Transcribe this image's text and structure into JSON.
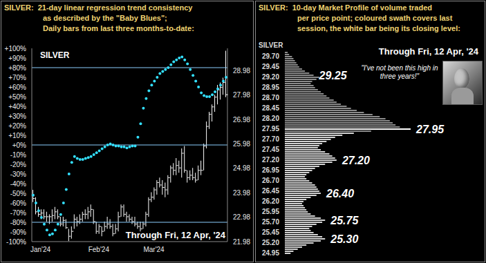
{
  "chart_data": [
    {
      "type": "combo",
      "title": [
        "SILVER:  21-day linear regression trend consistency",
        "as described by the \"Baby Blues\";",
        "Daily bars from last three months-to-date:"
      ],
      "label": "SILVER",
      "note": "Through Fri, 12 Apr, '24",
      "categories": [
        "Jan'24",
        null,
        null,
        null,
        null,
        null,
        null,
        null,
        null,
        null,
        null,
        null,
        null,
        null,
        null,
        null,
        null,
        null,
        null,
        null,
        null,
        "Feb'24",
        null,
        null,
        null,
        null,
        null,
        null,
        null,
        null,
        null,
        null,
        null,
        null,
        null,
        null,
        null,
        null,
        null,
        null,
        null,
        "Mar'24",
        null,
        null,
        null,
        null,
        null,
        null,
        null,
        null,
        null,
        null,
        null,
        null,
        null,
        null,
        null,
        null,
        null,
        null,
        null,
        null,
        null,
        null,
        null,
        null,
        null,
        null,
        null,
        null,
        null
      ],
      "ylim": [
        -100,
        100
      ],
      "yticks": [
        {
          "value": 100,
          "label": "+100%"
        },
        {
          "value": 90,
          "label": "+90%"
        },
        {
          "value": 80,
          "label": "+80%"
        },
        {
          "value": 70,
          "label": "+70%"
        },
        {
          "value": 60,
          "label": "+60%"
        },
        {
          "value": 50,
          "label": "+50%"
        },
        {
          "value": 40,
          "label": "+40%"
        },
        {
          "value": 30,
          "label": "+30%"
        },
        {
          "value": 20,
          "label": "+20%"
        },
        {
          "value": 10,
          "label": "+10%"
        },
        {
          "value": 0,
          "label": "+0%"
        },
        {
          "value": -10,
          "label": "-10%"
        },
        {
          "value": -20,
          "label": "-20%"
        },
        {
          "value": -30,
          "label": "-30%"
        },
        {
          "value": -40,
          "label": "-40%"
        },
        {
          "value": -50,
          "label": "-50%"
        },
        {
          "value": -60,
          "label": "-60%"
        },
        {
          "value": -70,
          "label": "-70%"
        },
        {
          "value": -80,
          "label": "-80%"
        },
        {
          "value": -90,
          "label": "-90%"
        },
        {
          "value": -100,
          "label": "-100%"
        }
      ],
      "y2lim": [
        21.98,
        29.9
      ],
      "y2ticks": [
        21.98,
        22.98,
        23.98,
        24.98,
        25.98,
        26.98,
        27.98,
        28.98
      ],
      "reference_lines": {
        "values": [
          80,
          0,
          -80
        ],
        "color": "#8ccfff"
      },
      "grid": false,
      "series": [
        {
          "type": "range_bar",
          "axis": "y2",
          "color": "#ffffff",
          "low": [
            23.6,
            23.1,
            23.0,
            22.9,
            22.9,
            22.8,
            22.7,
            22.8,
            22.9,
            22.9,
            22.6,
            22.6,
            22.5,
            22.0,
            22.1,
            22.5,
            22.6,
            22.7,
            22.8,
            22.9,
            22.9,
            23.0,
            22.7,
            22.3,
            22.3,
            22.2,
            22.4,
            22.5,
            22.5,
            22.2,
            22.3,
            22.4,
            23.0,
            23.0,
            22.8,
            22.8,
            22.7,
            22.6,
            22.5,
            22.4,
            22.5,
            22.6,
            23.0,
            23.6,
            23.7,
            23.9,
            24.2,
            23.9,
            23.8,
            23.9,
            24.4,
            24.7,
            24.7,
            24.8,
            24.6,
            24.8,
            24.4,
            24.5,
            24.5,
            24.4,
            24.5,
            24.7,
            24.9,
            25.8,
            26.6,
            26.9,
            27.3,
            27.6,
            27.8,
            28.0,
            27.9
          ],
          "high": [
            24.1,
            23.8,
            23.4,
            23.3,
            23.3,
            23.2,
            23.1,
            23.3,
            23.4,
            23.3,
            23.0,
            23.0,
            22.9,
            22.5,
            22.6,
            23.1,
            23.0,
            23.1,
            23.2,
            23.3,
            23.4,
            23.5,
            23.3,
            22.8,
            22.7,
            22.6,
            22.8,
            23.0,
            22.9,
            22.7,
            22.7,
            23.2,
            23.5,
            23.5,
            23.2,
            23.1,
            23.0,
            23.0,
            22.8,
            22.8,
            22.8,
            23.2,
            23.8,
            24.0,
            24.2,
            24.5,
            24.6,
            24.5,
            24.4,
            24.7,
            25.1,
            25.2,
            25.4,
            25.3,
            25.8,
            25.9,
            24.9,
            24.9,
            25.0,
            24.8,
            25.1,
            25.3,
            26.0,
            26.9,
            27.3,
            27.6,
            28.0,
            28.4,
            28.5,
            28.7,
            29.8
          ],
          "close": [
            23.75,
            23.2,
            23.1,
            23.15,
            23.0,
            23.0,
            23.0,
            23.05,
            23.2,
            23.0,
            22.7,
            22.85,
            22.55,
            22.2,
            22.4,
            22.9,
            22.8,
            22.9,
            23.1,
            23.1,
            23.2,
            23.3,
            22.8,
            22.4,
            22.6,
            22.4,
            22.6,
            22.7,
            22.6,
            22.3,
            22.5,
            23.0,
            23.4,
            23.1,
            23.0,
            22.9,
            22.8,
            22.7,
            22.6,
            22.5,
            22.7,
            23.1,
            23.7,
            23.8,
            24.1,
            24.4,
            24.3,
            24.2,
            24.1,
            24.6,
            25.0,
            24.9,
            25.1,
            25.0,
            25.6,
            24.9,
            24.6,
            24.7,
            24.6,
            24.5,
            24.9,
            24.9,
            25.9,
            26.7,
            27.2,
            27.5,
            27.9,
            28.2,
            28.3,
            28.5,
            28.0
          ]
        },
        {
          "type": "scatter",
          "color": "#33e0ff",
          "marker": "circle",
          "values": [
            -52,
            -60,
            -68,
            -75,
            -82,
            -88,
            -93,
            -92,
            -88,
            -82,
            -72,
            -60,
            -46,
            -30,
            -18,
            -12,
            -14,
            -15,
            -15,
            -14,
            -13,
            -12,
            -10,
            -8,
            -6,
            -4,
            -2,
            0,
            1,
            0,
            -1,
            -1,
            -2,
            -2,
            -3,
            -2,
            -1,
            -1,
            8,
            22,
            38,
            48,
            56,
            62,
            66,
            70,
            74,
            76,
            78,
            80,
            83,
            86,
            88,
            90,
            91,
            88,
            84,
            78,
            72,
            66,
            60,
            54,
            51,
            50,
            50,
            52,
            55,
            58,
            62,
            66,
            70
          ]
        }
      ]
    },
    {
      "type": "bar",
      "orientation": "horizontal",
      "title": [
        "SILVER:  10-day Market Profile of volume traded",
        "per price point; coloured swath covers last",
        "session, the white bar being its closing level:"
      ],
      "label": "SILVER",
      "note": "Through Fri, 12 Apr, '24",
      "quote": "\"I've not been this high in three years!\"",
      "tick_labels": "y",
      "color": "#d4d4d4",
      "xlim": [
        0,
        200
      ],
      "y": [
        29.8,
        29.75,
        29.7,
        29.65,
        29.6,
        29.55,
        29.5,
        29.45,
        29.4,
        29.35,
        29.3,
        29.25,
        29.2,
        29.15,
        29.1,
        29.05,
        29,
        28.95,
        28.9,
        28.85,
        28.8,
        28.75,
        28.7,
        28.65,
        28.6,
        28.55,
        28.5,
        28.45,
        28.4,
        28.35,
        28.3,
        28.25,
        28.2,
        28.15,
        28.1,
        28.05,
        28,
        27.95,
        27.9,
        27.85,
        27.8,
        27.75,
        27.7,
        27.65,
        27.6,
        27.55,
        27.5,
        27.45,
        27.4,
        27.35,
        27.3,
        27.25,
        27.2,
        27.15,
        27.1,
        27.05,
        27,
        26.95,
        26.9,
        26.85,
        26.8,
        26.75,
        26.7,
        26.65,
        26.6,
        26.55,
        26.5,
        26.45,
        26.4,
        26.35,
        26.3,
        26.25,
        26.2,
        26.15,
        26.1,
        26.05,
        26,
        25.95,
        25.9,
        25.85,
        25.8,
        25.75,
        25.7,
        25.65,
        25.6,
        25.55,
        25.5,
        25.45,
        25.4,
        25.35,
        25.3,
        25.25,
        25.2,
        25.15,
        25.1,
        25.05,
        25,
        24.95
      ],
      "values": [
        4,
        6,
        10,
        12,
        14,
        16,
        18,
        20,
        24,
        28,
        34,
        40,
        48,
        44,
        38,
        36,
        40,
        42,
        46,
        50,
        54,
        58,
        62,
        68,
        72,
        78,
        86,
        92,
        100,
        110,
        122,
        132,
        140,
        146,
        150,
        154,
        160,
        175,
        120,
        96,
        80,
        70,
        64,
        58,
        52,
        48,
        46,
        50,
        56,
        62,
        66,
        70,
        72,
        66,
        56,
        48,
        42,
        38,
        34,
        30,
        28,
        30,
        34,
        38,
        42,
        44,
        46,
        48,
        50,
        44,
        36,
        30,
        26,
        24,
        26,
        28,
        30,
        32,
        36,
        42,
        50,
        56,
        52,
        44,
        38,
        34,
        36,
        40,
        46,
        52,
        56,
        50,
        40,
        30,
        24,
        18,
        12,
        8
      ],
      "yticks": [
        {
          "value": 29.7,
          "label": "29.70"
        },
        29.45,
        {
          "value": 29.2,
          "label": "29.20"
        },
        28.95,
        {
          "value": 28.7,
          "label": "28.70"
        },
        28.45,
        {
          "value": 28.2,
          "label": "28.20"
        },
        27.95,
        {
          "value": 27.7,
          "label": "27.70"
        },
        27.45,
        {
          "value": 27.2,
          "label": "27.20"
        },
        26.95,
        {
          "value": 26.7,
          "label": "26.70"
        },
        26.45,
        {
          "value": 26.2,
          "label": "26.20"
        },
        25.95,
        {
          "value": 25.7,
          "label": "25.70"
        },
        25.45,
        {
          "value": 25.2,
          "label": "25.20"
        },
        24.95
      ],
      "last_session": {
        "low": 27.9,
        "high": 29.8,
        "close": 27.95,
        "color": "#8c8c8c",
        "close_color": "#ffffff"
      },
      "annotations": [
        {
          "y": 29.25,
          "label": "29.25"
        },
        {
          "y": 27.95,
          "label": "27.95"
        },
        {
          "y": 27.2,
          "label": "27.20"
        },
        {
          "y": 26.4,
          "label": "26.40"
        },
        {
          "y": 25.75,
          "label": "25.75"
        },
        {
          "y": 25.3,
          "label": "25.30"
        }
      ]
    }
  ]
}
